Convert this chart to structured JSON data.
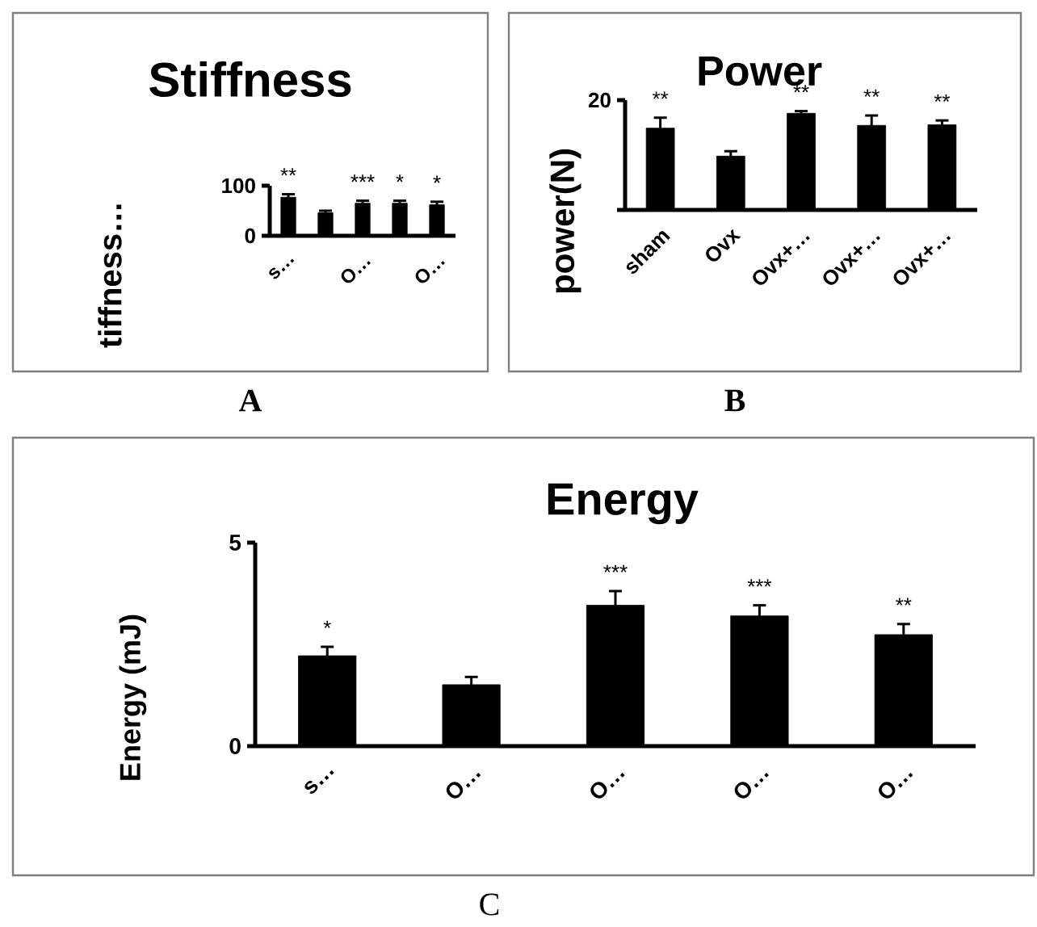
{
  "chart_data": [
    {
      "type": "bar",
      "title": "Stiffness",
      "ylabel": "tiffness…",
      "categories": [
        "s…",
        null,
        "O…",
        null,
        "O…"
      ],
      "values": [
        77,
        46,
        65,
        65,
        62
      ],
      "errors": [
        6,
        4,
        5,
        5,
        6
      ],
      "value_labels": [
        "**",
        null,
        "***",
        "*",
        "*"
      ],
      "color": "#000000",
      "ylim": [
        0,
        100
      ],
      "yticks": [
        0,
        100
      ],
      "annotations": [
        "A"
      ]
    },
    {
      "type": "bar",
      "title": "Power",
      "ylabel": "power(N)",
      "categories": [
        "sham",
        "Ovx",
        "Ovx+…",
        "Ovx+…",
        "Ovx+…"
      ],
      "values": [
        14.9,
        9.8,
        17.6,
        15.4,
        15.5
      ],
      "errors": [
        1.9,
        0.9,
        0.4,
        1.8,
        0.8
      ],
      "value_labels": [
        "**",
        null,
        "**",
        "**",
        "**"
      ],
      "color": "#000000",
      "ylim": [
        0,
        20
      ],
      "yticks": [
        {
          "value": 0,
          "label": null
        },
        20
      ],
      "annotations": [
        "B"
      ]
    },
    {
      "type": "bar",
      "title": "Energy",
      "ylabel": "Energy (mJ)",
      "categories": [
        "s…",
        "O…",
        "O…",
        "O…",
        "O…"
      ],
      "values": [
        2.22,
        1.51,
        3.46,
        3.2,
        2.74
      ],
      "errors": [
        0.22,
        0.19,
        0.35,
        0.26,
        0.26
      ],
      "value_labels": [
        "*",
        null,
        "***",
        "***",
        "**"
      ],
      "color": "#000000",
      "ylim": [
        0,
        5
      ],
      "yticks": [
        0,
        5
      ],
      "annotations": [
        "C"
      ]
    }
  ]
}
